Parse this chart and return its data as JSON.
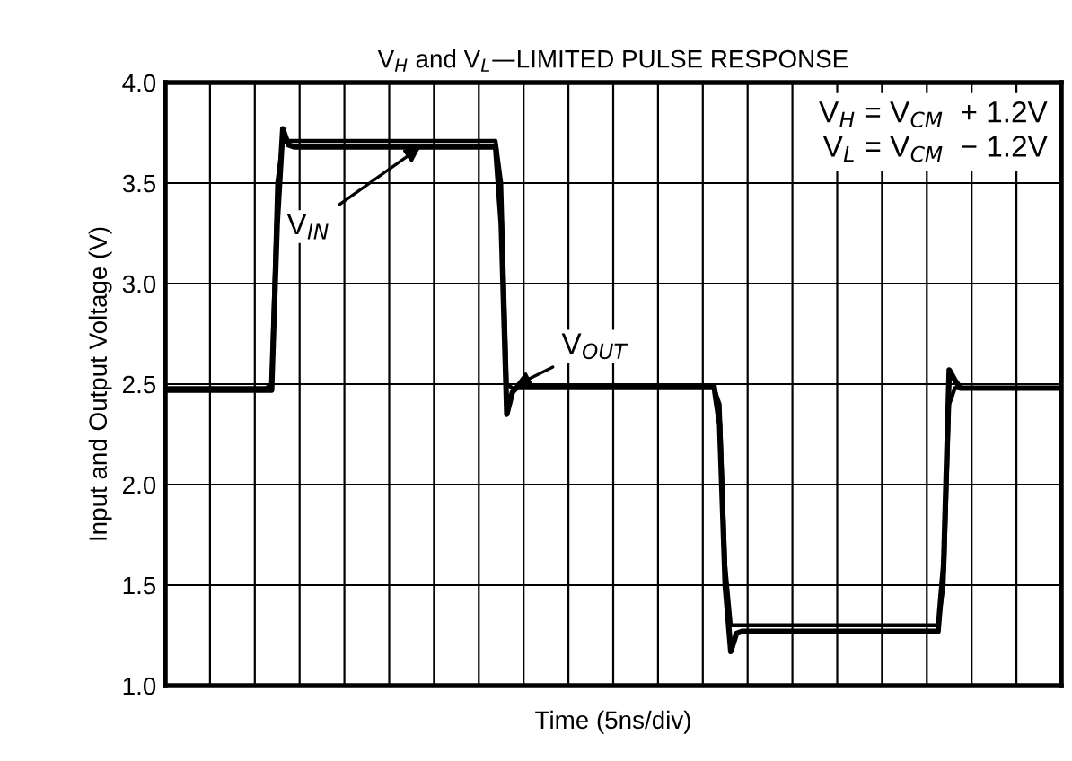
{
  "chart_data": {
    "type": "line",
    "title": "V$_{H}$ and V$_{L}$—LIMITED PULSE RESPONSE",
    "xlabel": "Time (5ns/div)",
    "ylabel": "Input and Output Voltage (V)",
    "categories": [
      null,
      null,
      null,
      null,
      null,
      null,
      null,
      null,
      null,
      null,
      null,
      null,
      null,
      null,
      null,
      null,
      null,
      null,
      null,
      null,
      null,
      null,
      null,
      null,
      null,
      null,
      null,
      null,
      null,
      null,
      null,
      null,
      null,
      null,
      null,
      null,
      null,
      null,
      null,
      null,
      null,
      null,
      null,
      null,
      null,
      null,
      null,
      null,
      null,
      null,
      null,
      null,
      null,
      null,
      null,
      null,
      null,
      null,
      null,
      null,
      null,
      null,
      null,
      null,
      null,
      null,
      null,
      null,
      null,
      null,
      null,
      null,
      null,
      null,
      null,
      null,
      null,
      null,
      null,
      null,
      null,
      null,
      null,
      null,
      null,
      null,
      null,
      null,
      null,
      null,
      null,
      null,
      null,
      null,
      null,
      null,
      null,
      null,
      null,
      null,
      null,
      null,
      null,
      null,
      null,
      null,
      null,
      null,
      null,
      null,
      null,
      null,
      null,
      null,
      null,
      null,
      null,
      null,
      null,
      null,
      null,
      null,
      null,
      null,
      null,
      null,
      null,
      null,
      null,
      null,
      null,
      null,
      null,
      null,
      null,
      null,
      null,
      null,
      null,
      null,
      null,
      null,
      null,
      null,
      null,
      null,
      null,
      null,
      null,
      null,
      null,
      null,
      null,
      null,
      null,
      null,
      null,
      null,
      null,
      null,
      null
    ],
    "ylim": [
      1.0,
      4.0
    ],
    "yticks": [
      {
        "value": 1.0,
        "label": "1.0"
      },
      {
        "value": 1.5,
        "label": "1.5"
      },
      {
        "value": 2.0,
        "label": "2.0"
      },
      {
        "value": 2.5,
        "label": "2.5"
      },
      {
        "value": 3.0,
        "label": "3.0"
      },
      {
        "value": 3.5,
        "label": "3.5"
      },
      {
        "value": 4.0,
        "label": "4.0"
      }
    ],
    "tick_labels": "y",
    "grid": true,
    "legend": false,
    "marker": "none",
    "line_style": "solid",
    "series": [
      {
        "color": "#000000",
        "values": [
          2.48,
          2.48,
          2.48,
          2.48,
          2.48,
          2.48,
          2.48,
          2.48,
          2.48,
          2.48,
          2.48,
          2.48,
          2.48,
          2.48,
          2.48,
          2.48,
          2.48,
          2.48,
          2.48,
          2.5,
          3.5,
          3.71,
          3.71,
          3.71,
          3.71,
          3.71,
          3.71,
          3.71,
          3.71,
          3.71,
          3.71,
          3.71,
          3.71,
          3.71,
          3.71,
          3.71,
          3.71,
          3.71,
          3.71,
          3.71,
          3.71,
          3.71,
          3.71,
          3.71,
          3.71,
          3.71,
          3.71,
          3.71,
          3.71,
          3.71,
          3.71,
          3.71,
          3.71,
          3.71,
          3.71,
          3.71,
          3.71,
          3.71,
          3.71,
          3.71,
          3.5,
          2.5,
          2.48,
          2.48,
          2.48,
          2.48,
          2.48,
          2.48,
          2.48,
          2.48,
          2.48,
          2.48,
          2.48,
          2.48,
          2.48,
          2.48,
          2.48,
          2.48,
          2.48,
          2.48,
          2.48,
          2.48,
          2.48,
          2.48,
          2.48,
          2.48,
          2.48,
          2.48,
          2.48,
          2.48,
          2.48,
          2.48,
          2.48,
          2.48,
          2.48,
          2.48,
          2.48,
          2.48,
          2.48,
          2.4,
          1.6,
          1.3,
          1.3,
          1.3,
          1.3,
          1.3,
          1.3,
          1.3,
          1.3,
          1.3,
          1.3,
          1.3,
          1.3,
          1.3,
          1.3,
          1.3,
          1.3,
          1.3,
          1.3,
          1.3,
          1.3,
          1.3,
          1.3,
          1.3,
          1.3,
          1.3,
          1.3,
          1.3,
          1.3,
          1.3,
          1.3,
          1.3,
          1.3,
          1.3,
          1.3,
          1.3,
          1.3,
          1.3,
          1.3,
          1.5,
          2.4,
          2.48,
          2.48,
          2.48,
          2.48,
          2.48,
          2.48,
          2.48,
          2.48,
          2.48,
          2.48,
          2.48,
          2.48,
          2.48,
          2.48,
          2.48,
          2.48,
          2.48,
          2.48,
          2.48,
          2.48
        ]
      },
      {
        "color": "#000000",
        "values": [
          2.47,
          2.47,
          2.47,
          2.47,
          2.47,
          2.47,
          2.47,
          2.47,
          2.47,
          2.47,
          2.47,
          2.47,
          2.47,
          2.47,
          2.47,
          2.47,
          2.47,
          2.47,
          2.47,
          2.47,
          3.3,
          3.77,
          3.69,
          3.68,
          3.68,
          3.68,
          3.68,
          3.68,
          3.68,
          3.68,
          3.68,
          3.68,
          3.68,
          3.68,
          3.68,
          3.68,
          3.68,
          3.68,
          3.68,
          3.68,
          3.68,
          3.68,
          3.68,
          3.68,
          3.68,
          3.68,
          3.68,
          3.68,
          3.68,
          3.68,
          3.68,
          3.68,
          3.68,
          3.68,
          3.68,
          3.68,
          3.68,
          3.68,
          3.68,
          3.68,
          3.3,
          2.35,
          2.46,
          2.49,
          2.49,
          2.49,
          2.49,
          2.49,
          2.49,
          2.49,
          2.49,
          2.49,
          2.49,
          2.49,
          2.49,
          2.49,
          2.49,
          2.49,
          2.49,
          2.49,
          2.49,
          2.49,
          2.49,
          2.49,
          2.49,
          2.49,
          2.49,
          2.49,
          2.49,
          2.49,
          2.49,
          2.49,
          2.49,
          2.49,
          2.49,
          2.49,
          2.49,
          2.49,
          2.49,
          2.3,
          1.5,
          1.17,
          1.26,
          1.27,
          1.27,
          1.27,
          1.27,
          1.27,
          1.27,
          1.27,
          1.27,
          1.27,
          1.27,
          1.27,
          1.27,
          1.27,
          1.27,
          1.27,
          1.27,
          1.27,
          1.27,
          1.27,
          1.27,
          1.27,
          1.27,
          1.27,
          1.27,
          1.27,
          1.27,
          1.27,
          1.27,
          1.27,
          1.27,
          1.27,
          1.27,
          1.27,
          1.27,
          1.27,
          1.27,
          1.6,
          2.57,
          2.52,
          2.48,
          2.48,
          2.48,
          2.48,
          2.48,
          2.48,
          2.48,
          2.48,
          2.48,
          2.48,
          2.48,
          2.48,
          2.48,
          2.48,
          2.48,
          2.48,
          2.48,
          2.48,
          2.48
        ]
      }
    ],
    "annotations": [
      {
        "text": "V$_{IN}$",
        "y": 3.68
      },
      {
        "text": "V$_{OUT}$",
        "y": 2.49
      },
      "V$_{H}$ = V$_{CM}$  + 1.2V\nV$_{L}$ = V$_{CM}$  − 1.2V"
    ]
  }
}
